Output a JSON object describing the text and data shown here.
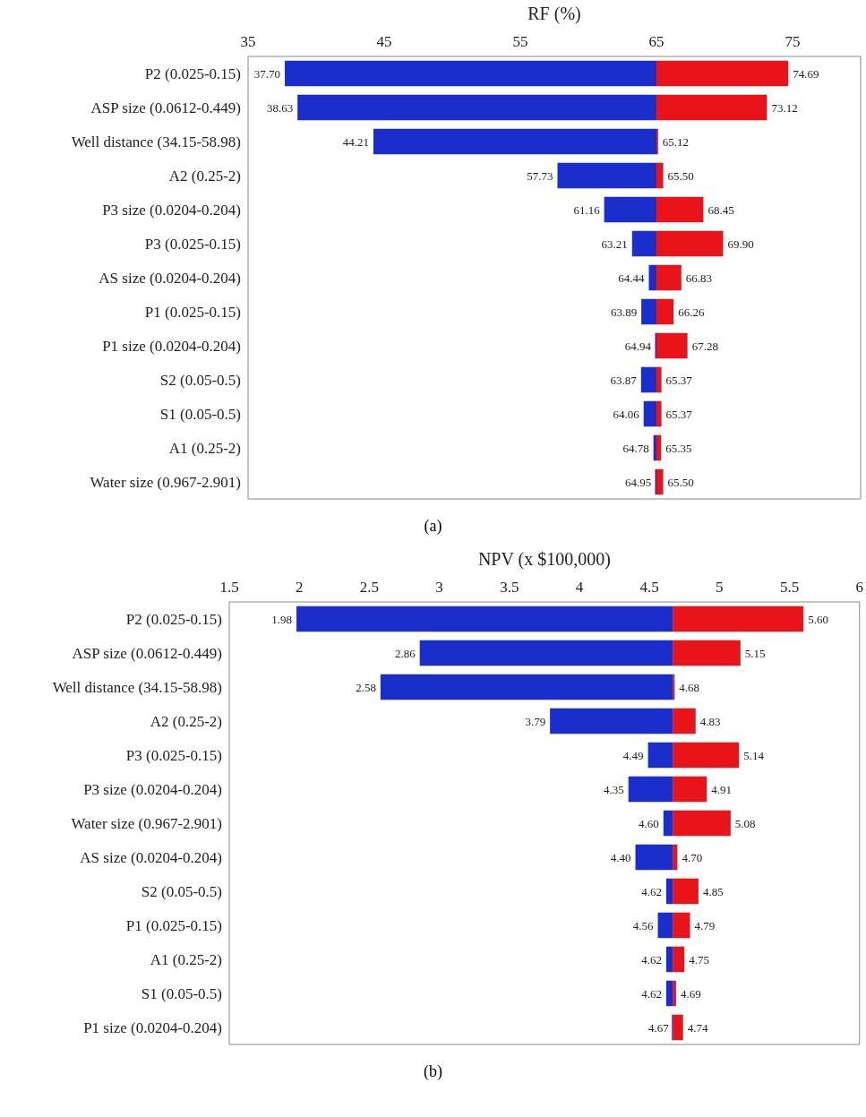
{
  "chart_data": [
    {
      "type": "bar",
      "orientation": "horizontal",
      "xlabel": "RF (%)",
      "xlim": [
        35,
        80
      ],
      "xticks": [
        35,
        45,
        55,
        65,
        75
      ],
      "annotations": [
        "(a)"
      ],
      "categories": [
        "P2 (0.025-0.15)",
        "ASP size (0.0612-0.449)",
        "Well distance (34.15-58.98)",
        "A2 (0.25-2)",
        "P3 size (0.0204-0.204)",
        "P3 (0.025-0.15)",
        "AS size (0.0204-0.204)",
        "P1 (0.025-0.15)",
        "P1 size (0.0204-0.204)",
        "S2 (0.05-0.5)",
        "S1 (0.05-0.5)",
        "A1 (0.25-2)",
        "Water size (0.967-2.901)"
      ],
      "series": [
        {
          "color": "#1a2ecc",
          "base": [
            65,
            65,
            65,
            65,
            65,
            65,
            65,
            65,
            65,
            65,
            65,
            65,
            65
          ],
          "values": [
            -27.3,
            -26.37,
            -20.79,
            -7.27,
            -3.84,
            -1.79,
            -0.56,
            -1.11,
            -0.06,
            -1.13,
            -0.94,
            -0.22,
            -0.05
          ],
          "value_labels": [
            "37.70",
            "38.63",
            "44.21",
            "57.73",
            "61.16",
            "63.21",
            "64.44",
            "63.89",
            "64.94",
            "63.87",
            "64.06",
            "64.78",
            "64.95"
          ]
        },
        {
          "color": "#e8141a",
          "base": [
            65,
            65,
            65,
            65,
            65,
            65,
            65,
            65,
            65,
            65,
            65,
            65,
            65
          ],
          "values": [
            9.69,
            8.12,
            0.12,
            0.5,
            3.45,
            4.9,
            1.83,
            1.26,
            2.28,
            0.37,
            0.37,
            0.35,
            0.5
          ],
          "value_labels": [
            "74.69",
            "73.12",
            "65.12",
            "65.50",
            "68.45",
            "69.90",
            "66.83",
            "66.26",
            "67.28",
            "65.37",
            "65.37",
            "65.35",
            "65.50"
          ]
        }
      ]
    },
    {
      "type": "bar",
      "orientation": "horizontal",
      "xlabel": "NPV (x $100,000)",
      "xlim": [
        1.5,
        6
      ],
      "xticks": [
        1.5,
        2,
        2.5,
        3,
        3.5,
        4,
        4.5,
        5,
        5.5,
        6
      ],
      "annotations": [
        "(b)"
      ],
      "categories": [
        "P2 (0.025-0.15)",
        "ASP size (0.0612-0.449)",
        "Well distance (34.15-58.98)",
        "A2 (0.25-2)",
        "P3 (0.025-0.15)",
        "P3 size (0.0204-0.204)",
        "Water size (0.967-2.901)",
        "AS size (0.0204-0.204)",
        "S2 (0.05-0.5)",
        "P1 (0.025-0.15)",
        "A1 (0.25-2)",
        "S1 (0.05-0.5)",
        "P1 size (0.0204-0.204)"
      ],
      "series": [
        {
          "color": "#1a2ecc",
          "base": [
            4.67,
            4.67,
            4.67,
            4.67,
            4.67,
            4.67,
            4.67,
            4.67,
            4.67,
            4.67,
            4.67,
            4.67,
            4.67
          ],
          "values": [
            -2.69,
            -1.81,
            -2.09,
            -0.88,
            -0.18,
            -0.32,
            -0.07,
            -0.27,
            -0.05,
            -0.11,
            -0.05,
            -0.05,
            0
          ],
          "value_labels": [
            "1.98",
            "2.86",
            "2.58",
            "3.79",
            "4.49",
            "4.35",
            "4.60",
            "4.40",
            "4.62",
            "4.56",
            "4.62",
            "4.62",
            "4.67"
          ]
        },
        {
          "color": "#e8141a",
          "base": [
            4.67,
            4.67,
            4.67,
            4.67,
            4.67,
            4.67,
            4.67,
            4.67,
            4.67,
            4.67,
            4.67,
            4.67,
            4.67
          ],
          "values": [
            0.93,
            0.48,
            0.01,
            0.16,
            0.47,
            0.24,
            0.41,
            0.03,
            0.18,
            0.12,
            0.08,
            0.02,
            0.07
          ],
          "value_labels": [
            "5.60",
            "5.15",
            "4.68",
            "4.83",
            "5.14",
            "4.91",
            "5.08",
            "4.70",
            "4.85",
            "4.79",
            "4.75",
            "4.69",
            "4.74"
          ]
        }
      ]
    }
  ]
}
